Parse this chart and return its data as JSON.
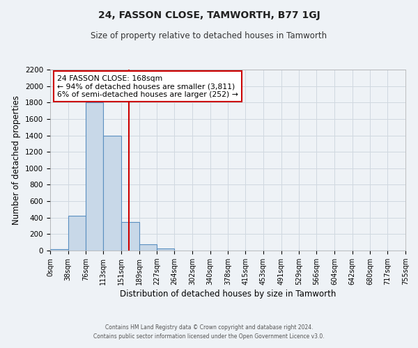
{
  "title": "24, FASSON CLOSE, TAMWORTH, B77 1GJ",
  "subtitle": "Size of property relative to detached houses in Tamworth",
  "xlabel": "Distribution of detached houses by size in Tamworth",
  "ylabel": "Number of detached properties",
  "footer_line1": "Contains HM Land Registry data © Crown copyright and database right 2024.",
  "footer_line2": "Contains public sector information licensed under the Open Government Licence v3.0.",
  "bar_edges": [
    0,
    38,
    76,
    113,
    151,
    189,
    227,
    264,
    302,
    340,
    378,
    415,
    453,
    491,
    529,
    566,
    604,
    642,
    680,
    717,
    755
  ],
  "bar_heights": [
    20,
    420,
    1800,
    1400,
    350,
    80,
    25,
    0,
    0,
    0,
    0,
    0,
    0,
    0,
    0,
    0,
    0,
    0,
    0,
    0
  ],
  "bar_color": "#c8d8e8",
  "bar_edge_color": "#5a8fc0",
  "property_size": 168,
  "vline_color": "#cc0000",
  "annotation_title": "24 FASSON CLOSE: 168sqm",
  "annotation_line1": "← 94% of detached houses are smaller (3,811)",
  "annotation_line2": "6% of semi-detached houses are larger (252) →",
  "annotation_box_color": "#ffffff",
  "annotation_box_edge": "#cc0000",
  "ylim": [
    0,
    2200
  ],
  "yticks": [
    0,
    200,
    400,
    600,
    800,
    1000,
    1200,
    1400,
    1600,
    1800,
    2000,
    2200
  ],
  "xtick_labels": [
    "0sqm",
    "38sqm",
    "76sqm",
    "113sqm",
    "151sqm",
    "189sqm",
    "227sqm",
    "264sqm",
    "302sqm",
    "340sqm",
    "378sqm",
    "415sqm",
    "453sqm",
    "491sqm",
    "529sqm",
    "566sqm",
    "604sqm",
    "642sqm",
    "680sqm",
    "717sqm",
    "755sqm"
  ],
  "grid_color": "#d0d8e0",
  "background_color": "#eef2f6"
}
